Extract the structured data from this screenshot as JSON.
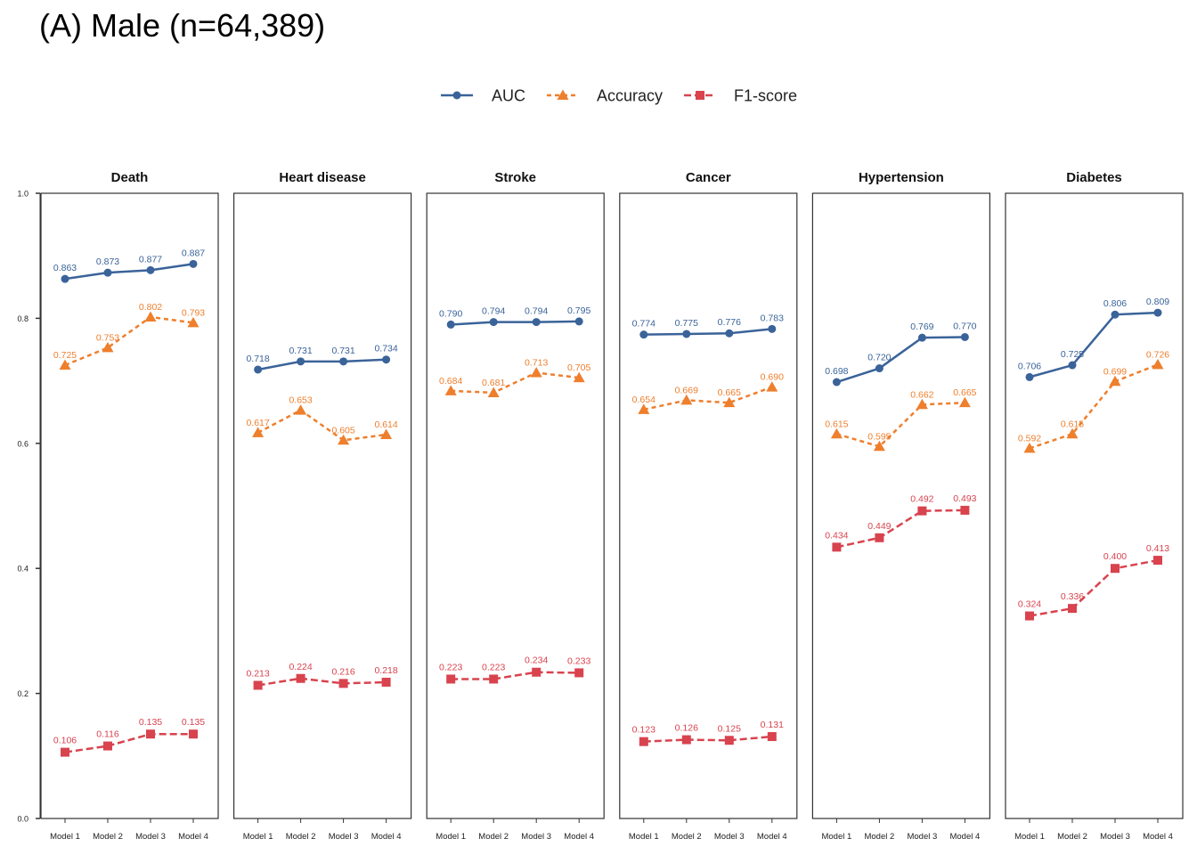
{
  "figure_title": "(A) Male (n=64,389)",
  "colors": {
    "AUC": "#3a6399",
    "Accuracy": "#ee7f2d",
    "F1-score": "#d8434e"
  },
  "chart_data": {
    "type": "line",
    "categories": [
      "Model 1",
      "Model 2",
      "Model 3",
      "Model 4"
    ],
    "ylim": [
      0.0,
      1.0
    ],
    "yticks": [
      "0.0",
      "0.2",
      "0.4",
      "0.6",
      "0.8",
      "1.0"
    ],
    "legend": [
      "AUC",
      "Accuracy",
      "F1-score"
    ],
    "legend_position": "top",
    "panels": [
      {
        "title": "Death",
        "series": [
          {
            "name": "AUC",
            "values": [
              0.863,
              0.873,
              0.877,
              0.887
            ]
          },
          {
            "name": "Accuracy",
            "values": [
              0.725,
              0.753,
              0.802,
              0.793
            ]
          },
          {
            "name": "F1-score",
            "values": [
              0.106,
              0.116,
              0.135,
              0.135
            ]
          }
        ]
      },
      {
        "title": "Heart disease",
        "series": [
          {
            "name": "AUC",
            "values": [
              0.718,
              0.731,
              0.731,
              0.734
            ]
          },
          {
            "name": "Accuracy",
            "values": [
              0.617,
              0.653,
              0.605,
              0.614
            ]
          },
          {
            "name": "F1-score",
            "values": [
              0.213,
              0.224,
              0.216,
              0.218
            ]
          }
        ]
      },
      {
        "title": "Stroke",
        "series": [
          {
            "name": "AUC",
            "values": [
              0.79,
              0.794,
              0.794,
              0.795
            ]
          },
          {
            "name": "Accuracy",
            "values": [
              0.684,
              0.681,
              0.713,
              0.705
            ]
          },
          {
            "name": "F1-score",
            "values": [
              0.223,
              0.223,
              0.234,
              0.233
            ]
          }
        ]
      },
      {
        "title": "Cancer",
        "series": [
          {
            "name": "AUC",
            "values": [
              0.774,
              0.775,
              0.776,
              0.783
            ]
          },
          {
            "name": "Accuracy",
            "values": [
              0.654,
              0.669,
              0.665,
              0.69
            ]
          },
          {
            "name": "F1-score",
            "values": [
              0.123,
              0.126,
              0.125,
              0.131
            ]
          }
        ]
      },
      {
        "title": "Hypertension",
        "series": [
          {
            "name": "AUC",
            "values": [
              0.698,
              0.72,
              0.769,
              0.77
            ]
          },
          {
            "name": "Accuracy",
            "values": [
              0.615,
              0.595,
              0.662,
              0.665
            ]
          },
          {
            "name": "F1-score",
            "values": [
              0.434,
              0.449,
              0.492,
              0.493
            ]
          }
        ]
      },
      {
        "title": "Diabetes",
        "series": [
          {
            "name": "AUC",
            "values": [
              0.706,
              0.725,
              0.806,
              0.809
            ]
          },
          {
            "name": "Accuracy",
            "values": [
              0.592,
              0.615,
              0.699,
              0.726
            ]
          },
          {
            "name": "F1-score",
            "values": [
              0.324,
              0.336,
              0.4,
              0.413
            ]
          }
        ]
      }
    ]
  }
}
